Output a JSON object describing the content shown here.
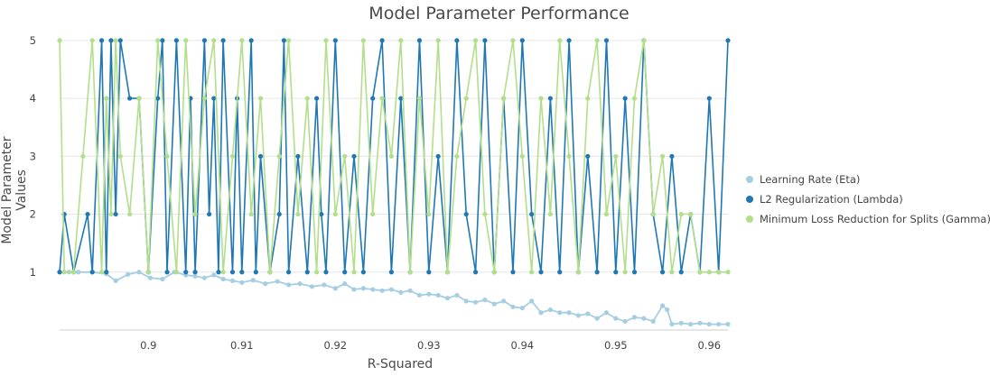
{
  "chart_data": {
    "type": "line",
    "title": "Model Parameter Performance",
    "xlabel": "R-Squared",
    "ylabel": "Model Parameter Values",
    "xlim": [
      0.8905,
      0.962
    ],
    "ylim": [
      0,
      5.2
    ],
    "x_ticks": [
      "0.9",
      "0.91",
      "0.92",
      "0.93",
      "0.94",
      "0.95",
      "0.96"
    ],
    "y_ticks": [
      "1",
      "2",
      "3",
      "4",
      "5"
    ],
    "grid": true,
    "legend_position": "right",
    "series": [
      {
        "name": "Learning Rate (Eta)",
        "color": "#a6cee3",
        "x": [
          0.8905,
          0.8915,
          0.8925,
          0.894,
          0.8955,
          0.8965,
          0.8978,
          0.899,
          0.9002,
          0.9015,
          0.9028,
          0.904,
          0.905,
          0.906,
          0.907,
          0.908,
          0.909,
          0.91,
          0.9112,
          0.9125,
          0.9138,
          0.915,
          0.9162,
          0.9175,
          0.9188,
          0.92,
          0.921,
          0.922,
          0.923,
          0.924,
          0.925,
          0.926,
          0.927,
          0.928,
          0.929,
          0.93,
          0.931,
          0.932,
          0.933,
          0.934,
          0.935,
          0.936,
          0.937,
          0.938,
          0.939,
          0.94,
          0.941,
          0.942,
          0.943,
          0.944,
          0.945,
          0.946,
          0.947,
          0.948,
          0.949,
          0.95,
          0.951,
          0.952,
          0.953,
          0.954,
          0.955,
          0.9555,
          0.956,
          0.957,
          0.958,
          0.959,
          0.96,
          0.961,
          0.962
        ],
        "values": [
          1.0,
          1.0,
          1.0,
          1.0,
          0.97,
          0.85,
          0.96,
          1.0,
          0.9,
          0.88,
          1.0,
          0.95,
          0.93,
          0.9,
          0.95,
          0.88,
          0.85,
          0.82,
          0.86,
          0.8,
          0.84,
          0.78,
          0.8,
          0.75,
          0.78,
          0.72,
          0.8,
          0.7,
          0.72,
          0.7,
          0.68,
          0.7,
          0.65,
          0.68,
          0.6,
          0.62,
          0.6,
          0.55,
          0.6,
          0.5,
          0.48,
          0.52,
          0.45,
          0.5,
          0.4,
          0.38,
          0.5,
          0.3,
          0.35,
          0.3,
          0.3,
          0.25,
          0.28,
          0.2,
          0.3,
          0.2,
          0.15,
          0.22,
          0.2,
          0.15,
          0.42,
          0.35,
          0.1,
          0.12,
          0.1,
          0.12,
          0.1,
          0.1,
          0.1
        ]
      },
      {
        "name": "L2 Regularization (Lambda)",
        "color": "#1f78b4",
        "x": [
          0.8905,
          0.891,
          0.892,
          0.8935,
          0.894,
          0.895,
          0.8955,
          0.896,
          0.8965,
          0.897,
          0.898,
          0.899,
          0.9,
          0.901,
          0.9015,
          0.902,
          0.903,
          0.904,
          0.9045,
          0.905,
          0.906,
          0.9065,
          0.907,
          0.9075,
          0.908,
          0.909,
          0.9095,
          0.91,
          0.911,
          0.9115,
          0.912,
          0.913,
          0.914,
          0.9145,
          0.915,
          0.916,
          0.917,
          0.918,
          0.9185,
          0.919,
          0.92,
          0.921,
          0.922,
          0.923,
          0.924,
          0.925,
          0.926,
          0.927,
          0.928,
          0.929,
          0.93,
          0.931,
          0.932,
          0.933,
          0.934,
          0.935,
          0.936,
          0.937,
          0.938,
          0.939,
          0.94,
          0.941,
          0.942,
          0.943,
          0.944,
          0.945,
          0.946,
          0.947,
          0.948,
          0.949,
          0.95,
          0.951,
          0.952,
          0.953,
          0.954,
          0.955,
          0.956,
          0.957,
          0.958,
          0.959,
          0.96,
          0.961,
          0.962
        ],
        "values": [
          1,
          2,
          1,
          2,
          1,
          5,
          1,
          5,
          2,
          5,
          4,
          4,
          1,
          4,
          5,
          1,
          5,
          1,
          4,
          1,
          5,
          2,
          4,
          1,
          5,
          1,
          4,
          1,
          5,
          1,
          3,
          1,
          2,
          5,
          1,
          3,
          1,
          4,
          2,
          1,
          5,
          1,
          3,
          1,
          4,
          5,
          1,
          4,
          1,
          5,
          1,
          3,
          1,
          5,
          2,
          1,
          5,
          1,
          4,
          1,
          5,
          2,
          1,
          4,
          1,
          5,
          1,
          3,
          1,
          5,
          1,
          4,
          1,
          5,
          2,
          1,
          3,
          1,
          2,
          1,
          4,
          1,
          5
        ]
      },
      {
        "name": "Minimum Loss Reduction for Splits (Gamma)",
        "color": "#b2df8a",
        "x": [
          0.8905,
          0.891,
          0.892,
          0.893,
          0.894,
          0.895,
          0.8955,
          0.896,
          0.8965,
          0.897,
          0.898,
          0.899,
          0.9,
          0.901,
          0.902,
          0.903,
          0.904,
          0.905,
          0.906,
          0.907,
          0.908,
          0.909,
          0.91,
          0.911,
          0.912,
          0.913,
          0.914,
          0.915,
          0.916,
          0.917,
          0.918,
          0.919,
          0.92,
          0.921,
          0.922,
          0.923,
          0.924,
          0.925,
          0.926,
          0.927,
          0.928,
          0.929,
          0.93,
          0.931,
          0.932,
          0.933,
          0.934,
          0.935,
          0.936,
          0.937,
          0.938,
          0.939,
          0.94,
          0.941,
          0.942,
          0.943,
          0.944,
          0.945,
          0.946,
          0.947,
          0.948,
          0.949,
          0.95,
          0.951,
          0.952,
          0.953,
          0.954,
          0.955,
          0.956,
          0.957,
          0.958,
          0.959,
          0.96,
          0.961,
          0.962
        ],
        "values": [
          5,
          1,
          1,
          3,
          5,
          1,
          4,
          2,
          5,
          3,
          2,
          4,
          1,
          5,
          3,
          1,
          5,
          2,
          4,
          5,
          1,
          3,
          5,
          2,
          4,
          1,
          3,
          5,
          2,
          4,
          1,
          5,
          2,
          3,
          1,
          5,
          2,
          4,
          3,
          5,
          1,
          4,
          2,
          5,
          1,
          3,
          4,
          5,
          2,
          1,
          4,
          5,
          3,
          1,
          4,
          2,
          5,
          3,
          1,
          4,
          5,
          2,
          3,
          1,
          4,
          5,
          2,
          3,
          1,
          2,
          2,
          1,
          1,
          1,
          1
        ]
      }
    ]
  }
}
